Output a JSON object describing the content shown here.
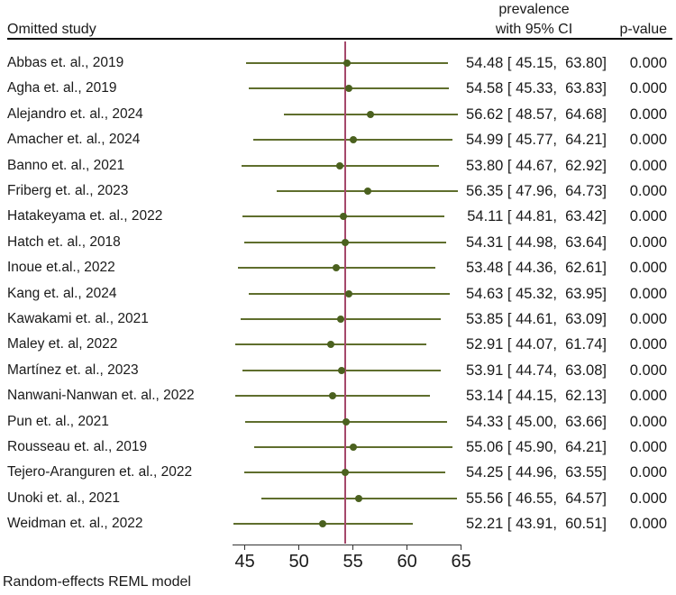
{
  "header": {
    "omitted_study": "Omitted study",
    "effect_line1": "prevalence",
    "effect_line2": "with 95% CI",
    "p_value": "p-value"
  },
  "footer": {
    "model_note": "Random-effects REML model"
  },
  "colors": {
    "ci_line": "#5f6e2d",
    "marker": "#4b611f",
    "ref_line": "#a5486b",
    "axis_line": "#333333",
    "text": "#1a1a1a"
  },
  "chart_data": {
    "type": "forest",
    "description": "Leave-one-out sensitivity forest plot: pooled prevalence with 95% CI after omitting each study",
    "x_ticks": [
      45,
      50,
      55,
      60,
      65
    ],
    "x_range": [
      43.86,
      65.2
    ],
    "ref_line_x": 54.3,
    "grid": false,
    "rows": [
      {
        "label": "Abbas et. al., 2019",
        "estimate": 54.48,
        "ci_low": 45.15,
        "ci_high": 63.8,
        "ci_text": "54.48 [ 45.15,  63.80]",
        "p_value": "0.000"
      },
      {
        "label": "Agha et. al., 2019",
        "estimate": 54.58,
        "ci_low": 45.33,
        "ci_high": 63.83,
        "ci_text": "54.58 [ 45.33,  63.83]",
        "p_value": "0.000"
      },
      {
        "label": "Alejandro et. al., 2024",
        "estimate": 56.62,
        "ci_low": 48.57,
        "ci_high": 64.68,
        "ci_text": "56.62 [ 48.57,  64.68]",
        "p_value": "0.000"
      },
      {
        "label": "Amacher et. al., 2024",
        "estimate": 54.99,
        "ci_low": 45.77,
        "ci_high": 64.21,
        "ci_text": "54.99 [ 45.77,  64.21]",
        "p_value": "0.000"
      },
      {
        "label": "Banno et. al., 2021",
        "estimate": 53.8,
        "ci_low": 44.67,
        "ci_high": 62.92,
        "ci_text": "53.80 [ 44.67,  62.92]",
        "p_value": "0.000"
      },
      {
        "label": "Friberg et. al., 2023",
        "estimate": 56.35,
        "ci_low": 47.96,
        "ci_high": 64.73,
        "ci_text": "56.35 [ 47.96,  64.73]",
        "p_value": "0.000"
      },
      {
        "label": "Hatakeyama et. al., 2022",
        "estimate": 54.11,
        "ci_low": 44.81,
        "ci_high": 63.42,
        "ci_text": "54.11 [ 44.81,  63.42]",
        "p_value": "0.000"
      },
      {
        "label": "Hatch et. al., 2018",
        "estimate": 54.31,
        "ci_low": 44.98,
        "ci_high": 63.64,
        "ci_text": "54.31 [ 44.98,  63.64]",
        "p_value": "0.000"
      },
      {
        "label": "Inoue et.al., 2022",
        "estimate": 53.48,
        "ci_low": 44.36,
        "ci_high": 62.61,
        "ci_text": "53.48 [ 44.36,  62.61]",
        "p_value": "0.000"
      },
      {
        "label": "Kang et. al., 2024",
        "estimate": 54.63,
        "ci_low": 45.32,
        "ci_high": 63.95,
        "ci_text": "54.63 [ 45.32,  63.95]",
        "p_value": "0.000"
      },
      {
        "label": "Kawakami et. al., 2021",
        "estimate": 53.85,
        "ci_low": 44.61,
        "ci_high": 63.09,
        "ci_text": "53.85 [ 44.61,  63.09]",
        "p_value": "0.000"
      },
      {
        "label": "Maley et. al, 2022",
        "estimate": 52.91,
        "ci_low": 44.07,
        "ci_high": 61.74,
        "ci_text": "52.91 [ 44.07,  61.74]",
        "p_value": "0.000"
      },
      {
        "label": "Martínez et. al., 2023",
        "estimate": 53.91,
        "ci_low": 44.74,
        "ci_high": 63.08,
        "ci_text": "53.91 [ 44.74,  63.08]",
        "p_value": "0.000"
      },
      {
        "label": "Nanwani-Nanwan et. al., 2022",
        "estimate": 53.14,
        "ci_low": 44.15,
        "ci_high": 62.13,
        "ci_text": "53.14 [ 44.15,  62.13]",
        "p_value": "0.000"
      },
      {
        "label": "Pun et. al., 2021",
        "estimate": 54.33,
        "ci_low": 45.0,
        "ci_high": 63.66,
        "ci_text": "54.33 [ 45.00,  63.66]",
        "p_value": "0.000"
      },
      {
        "label": "Rousseau et. al., 2019",
        "estimate": 55.06,
        "ci_low": 45.9,
        "ci_high": 64.21,
        "ci_text": "55.06 [ 45.90,  64.21]",
        "p_value": "0.000"
      },
      {
        "label": "Tejero-Aranguren et. al., 2022",
        "estimate": 54.25,
        "ci_low": 44.96,
        "ci_high": 63.55,
        "ci_text": "54.25 [ 44.96,  63.55]",
        "p_value": "0.000"
      },
      {
        "label": "Unoki et. al., 2021",
        "estimate": 55.56,
        "ci_low": 46.55,
        "ci_high": 64.57,
        "ci_text": "55.56 [ 46.55,  64.57]",
        "p_value": "0.000"
      },
      {
        "label": "Weidman et. al., 2022",
        "estimate": 52.21,
        "ci_low": 43.91,
        "ci_high": 60.51,
        "ci_text": "52.21 [ 43.91,  60.51]",
        "p_value": "0.000"
      }
    ]
  }
}
